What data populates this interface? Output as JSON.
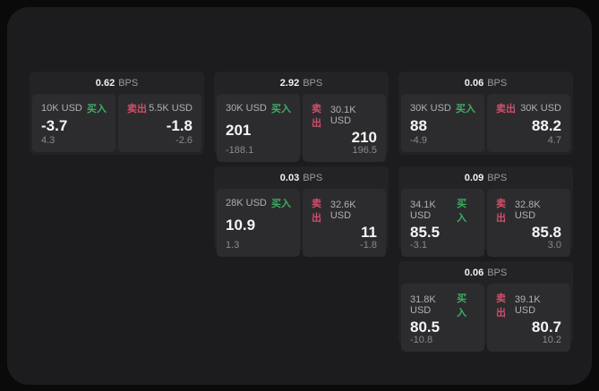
{
  "labels": {
    "bps": "BPS",
    "buy": "买入",
    "sell": "卖出"
  },
  "colors": {
    "background": "#0a0a0a",
    "panel": "#1c1c1e",
    "card": "#232325",
    "tile": "#2c2c2e",
    "buy_green": "#3dae63",
    "sell_red": "#d24d6b"
  },
  "cards": [
    {
      "bps": "0.62",
      "buy": {
        "amount": "10K USD",
        "value": "-3.7",
        "sub": "4.3"
      },
      "sell": {
        "amount": "5.5K USD",
        "value": "-1.8",
        "sub": "-2.6"
      }
    },
    {
      "bps": "2.92",
      "buy": {
        "amount": "30K USD",
        "value": "201",
        "sub": "-188.1"
      },
      "sell": {
        "amount": "30.1K USD",
        "value": "210",
        "sub": "196.5"
      }
    },
    {
      "bps": "0.06",
      "buy": {
        "amount": "30K USD",
        "value": "88",
        "sub": "-4.9"
      },
      "sell": {
        "amount": "30K USD",
        "value": "88.2",
        "sub": "4.7"
      }
    },
    {
      "bps": "0.03",
      "buy": {
        "amount": "28K USD",
        "value": "10.9",
        "sub": "1.3"
      },
      "sell": {
        "amount": "32.6K USD",
        "value": "11",
        "sub": "-1.8"
      }
    },
    {
      "bps": "0.09",
      "buy": {
        "amount": "34.1K USD",
        "value": "85.5",
        "sub": "-3.1"
      },
      "sell": {
        "amount": "32.8K USD",
        "value": "85.8",
        "sub": "3.0"
      }
    },
    {
      "bps": "0.06",
      "buy": {
        "amount": "31.8K USD",
        "value": "80.5",
        "sub": "-10.8"
      },
      "sell": {
        "amount": "39.1K USD",
        "value": "80.7",
        "sub": "10.2"
      }
    }
  ]
}
